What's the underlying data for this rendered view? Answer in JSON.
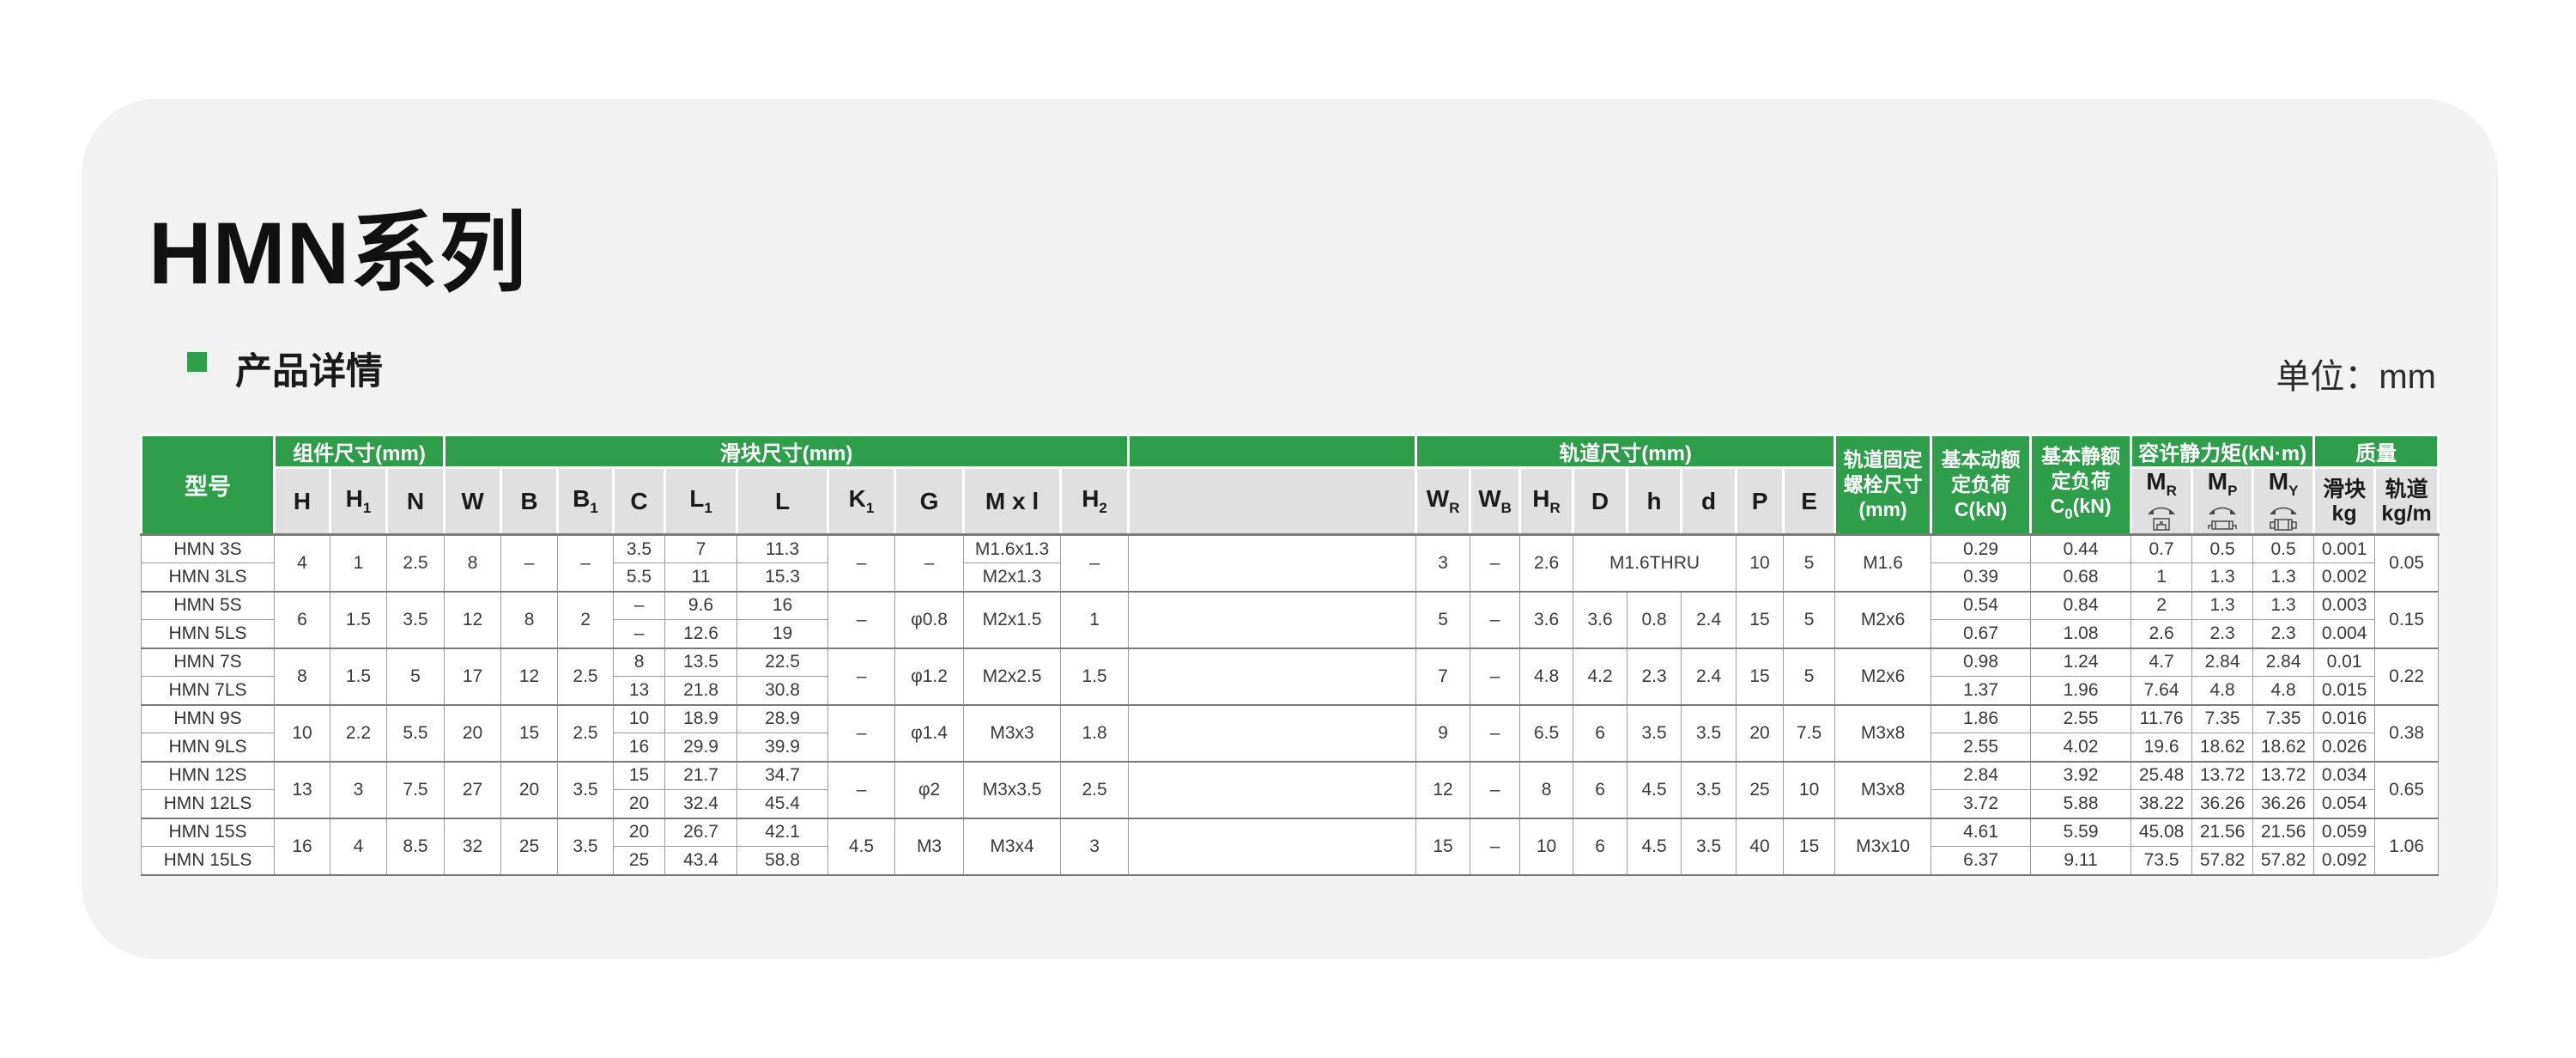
{
  "page": {
    "title": "HMN系列",
    "section_title": "产品详情",
    "unit_label": "单位：mm"
  },
  "colors": {
    "accent_green": "#2E9E4B",
    "header_gray": "#E0E0E0",
    "card_bg": "#F1F2F1",
    "page_bg": "#FFFFFF"
  },
  "table": {
    "top_headers": {
      "model": "型号",
      "assembly": "组件尺寸(mm)",
      "block": "滑块尺寸(mm)",
      "rail": "轨道尺寸(mm)",
      "bolt_lines": [
        "轨道固定",
        "螺栓尺寸",
        "(mm)"
      ],
      "dyn_lines": [
        "基本动额",
        "定负荷",
        "C(kN)"
      ],
      "stat_lines": [
        "基本静额",
        "定负荷"
      ],
      "stat_formula": {
        "pre": "C",
        "sub": "0",
        "post": "(kN)"
      },
      "moment": "容许静力矩(kN·m)",
      "mass": "质量"
    },
    "sub_headers": {
      "assembly": [
        {
          "b": "H"
        },
        {
          "b": "H",
          "s": "1"
        },
        {
          "b": "N"
        }
      ],
      "block": [
        {
          "b": "W"
        },
        {
          "b": "B"
        },
        {
          "b": "B",
          "s": "1"
        },
        {
          "b": "C"
        },
        {
          "b": "L",
          "s": "1"
        },
        {
          "b": "L"
        },
        {
          "b": "K",
          "s": "1"
        },
        {
          "b": "G"
        },
        {
          "b": "M x l"
        },
        {
          "b": "H",
          "s": "2"
        }
      ],
      "rail": [
        {
          "b": "W",
          "s": "R"
        },
        {
          "b": "W",
          "s": "B"
        },
        {
          "b": "H",
          "s": "R"
        },
        {
          "b": "D"
        },
        {
          "b": "h"
        },
        {
          "b": "d"
        },
        {
          "b": "P"
        },
        {
          "b": "E"
        }
      ],
      "moment": [
        {
          "b": "M",
          "s": "R",
          "icon": "mr-icon"
        },
        {
          "b": "M",
          "s": "P",
          "icon": "mp-icon"
        },
        {
          "b": "M",
          "s": "Y",
          "icon": "my-icon"
        }
      ],
      "mass": [
        {
          "lines": [
            "滑块",
            "kg"
          ]
        },
        {
          "lines": [
            "轨道",
            "kg/m"
          ]
        }
      ]
    },
    "groups": [
      {
        "rows": [
          [
            {
              "t": "HMN 3S",
              "n": "model-cell"
            },
            {
              "t": "4",
              "rs": 2
            },
            {
              "t": "1",
              "rs": 2
            },
            {
              "t": "2.5",
              "rs": 2
            },
            {
              "t": "8",
              "rs": 2
            },
            {
              "t": "–",
              "rs": 2
            },
            {
              "t": "–",
              "rs": 2
            },
            {
              "t": "3.5"
            },
            {
              "t": "7"
            },
            {
              "t": "11.3"
            },
            {
              "t": "–",
              "rs": 2
            },
            {
              "t": "–",
              "rs": 2
            },
            {
              "t": "M1.6x1.3"
            },
            {
              "t": "–",
              "rs": 2
            },
            {
              "t": "",
              "rs": 2,
              "n": "spacer-cell"
            },
            {
              "t": "3",
              "rs": 2
            },
            {
              "t": "–",
              "rs": 2
            },
            {
              "t": "2.6",
              "rs": 2
            },
            {
              "t": "M1.6THRU",
              "rs": 2,
              "cs": 3
            },
            {
              "t": "10",
              "rs": 2
            },
            {
              "t": "5",
              "rs": 2
            },
            {
              "t": "M1.6",
              "rs": 2
            },
            {
              "t": "0.29"
            },
            {
              "t": "0.44"
            },
            {
              "t": "0.7"
            },
            {
              "t": "0.5"
            },
            {
              "t": "0.5"
            },
            {
              "t": "0.001"
            },
            {
              "t": "0.05",
              "rs": 2
            }
          ],
          [
            {
              "t": "HMN 3LS",
              "n": "model-cell"
            },
            {
              "t": "5.5"
            },
            {
              "t": "11"
            },
            {
              "t": "15.3"
            },
            {
              "t": "M2x1.3"
            },
            {
              "t": "0.39"
            },
            {
              "t": "0.68"
            },
            {
              "t": "1"
            },
            {
              "t": "1.3"
            },
            {
              "t": "1.3"
            },
            {
              "t": "0.002"
            }
          ]
        ]
      },
      {
        "rows": [
          [
            {
              "t": "HMN 5S",
              "n": "model-cell"
            },
            {
              "t": "6",
              "rs": 2
            },
            {
              "t": "1.5",
              "rs": 2
            },
            {
              "t": "3.5",
              "rs": 2
            },
            {
              "t": "12",
              "rs": 2
            },
            {
              "t": "8",
              "rs": 2
            },
            {
              "t": "2",
              "rs": 2
            },
            {
              "t": "–"
            },
            {
              "t": "9.6"
            },
            {
              "t": "16"
            },
            {
              "t": "–",
              "rs": 2
            },
            {
              "t": "φ0.8",
              "rs": 2
            },
            {
              "t": "M2x1.5",
              "rs": 2
            },
            {
              "t": "1",
              "rs": 2
            },
            {
              "t": "",
              "rs": 2,
              "n": "spacer-cell"
            },
            {
              "t": "5",
              "rs": 2
            },
            {
              "t": "–",
              "rs": 2
            },
            {
              "t": "3.6",
              "rs": 2
            },
            {
              "t": "3.6",
              "rs": 2
            },
            {
              "t": "0.8",
              "rs": 2
            },
            {
              "t": "2.4",
              "rs": 2
            },
            {
              "t": "15",
              "rs": 2
            },
            {
              "t": "5",
              "rs": 2
            },
            {
              "t": "M2x6",
              "rs": 2
            },
            {
              "t": "0.54"
            },
            {
              "t": "0.84"
            },
            {
              "t": "2"
            },
            {
              "t": "1.3"
            },
            {
              "t": "1.3"
            },
            {
              "t": "0.003"
            },
            {
              "t": "0.15",
              "rs": 2
            }
          ],
          [
            {
              "t": "HMN 5LS",
              "n": "model-cell"
            },
            {
              "t": "–"
            },
            {
              "t": "12.6"
            },
            {
              "t": "19"
            },
            {
              "t": "0.67"
            },
            {
              "t": "1.08"
            },
            {
              "t": "2.6"
            },
            {
              "t": "2.3"
            },
            {
              "t": "2.3"
            },
            {
              "t": "0.004"
            }
          ]
        ]
      },
      {
        "rows": [
          [
            {
              "t": "HMN 7S",
              "n": "model-cell"
            },
            {
              "t": "8",
              "rs": 2
            },
            {
              "t": "1.5",
              "rs": 2
            },
            {
              "t": "5",
              "rs": 2
            },
            {
              "t": "17",
              "rs": 2
            },
            {
              "t": "12",
              "rs": 2
            },
            {
              "t": "2.5",
              "rs": 2
            },
            {
              "t": "8"
            },
            {
              "t": "13.5"
            },
            {
              "t": "22.5"
            },
            {
              "t": "–",
              "rs": 2
            },
            {
              "t": "φ1.2",
              "rs": 2
            },
            {
              "t": "M2x2.5",
              "rs": 2
            },
            {
              "t": "1.5",
              "rs": 2
            },
            {
              "t": "",
              "rs": 2,
              "n": "spacer-cell"
            },
            {
              "t": "7",
              "rs": 2
            },
            {
              "t": "–",
              "rs": 2
            },
            {
              "t": "4.8",
              "rs": 2
            },
            {
              "t": "4.2",
              "rs": 2
            },
            {
              "t": "2.3",
              "rs": 2
            },
            {
              "t": "2.4",
              "rs": 2
            },
            {
              "t": "15",
              "rs": 2
            },
            {
              "t": "5",
              "rs": 2
            },
            {
              "t": "M2x6",
              "rs": 2
            },
            {
              "t": "0.98"
            },
            {
              "t": "1.24"
            },
            {
              "t": "4.7"
            },
            {
              "t": "2.84"
            },
            {
              "t": "2.84"
            },
            {
              "t": "0.01"
            },
            {
              "t": "0.22",
              "rs": 2
            }
          ],
          [
            {
              "t": "HMN 7LS",
              "n": "model-cell"
            },
            {
              "t": "13"
            },
            {
              "t": "21.8"
            },
            {
              "t": "30.8"
            },
            {
              "t": "1.37"
            },
            {
              "t": "1.96"
            },
            {
              "t": "7.64"
            },
            {
              "t": "4.8"
            },
            {
              "t": "4.8"
            },
            {
              "t": "0.015"
            }
          ]
        ]
      },
      {
        "rows": [
          [
            {
              "t": "HMN 9S",
              "n": "model-cell"
            },
            {
              "t": "10",
              "rs": 2
            },
            {
              "t": "2.2",
              "rs": 2
            },
            {
              "t": "5.5",
              "rs": 2
            },
            {
              "t": "20",
              "rs": 2
            },
            {
              "t": "15",
              "rs": 2
            },
            {
              "t": "2.5",
              "rs": 2
            },
            {
              "t": "10"
            },
            {
              "t": "18.9"
            },
            {
              "t": "28.9"
            },
            {
              "t": "–",
              "rs": 2
            },
            {
              "t": "φ1.4",
              "rs": 2
            },
            {
              "t": "M3x3",
              "rs": 2
            },
            {
              "t": "1.8",
              "rs": 2
            },
            {
              "t": "",
              "rs": 2,
              "n": "spacer-cell"
            },
            {
              "t": "9",
              "rs": 2
            },
            {
              "t": "–",
              "rs": 2
            },
            {
              "t": "6.5",
              "rs": 2
            },
            {
              "t": "6",
              "rs": 2
            },
            {
              "t": "3.5",
              "rs": 2
            },
            {
              "t": "3.5",
              "rs": 2
            },
            {
              "t": "20",
              "rs": 2
            },
            {
              "t": "7.5",
              "rs": 2
            },
            {
              "t": "M3x8",
              "rs": 2
            },
            {
              "t": "1.86"
            },
            {
              "t": "2.55"
            },
            {
              "t": "11.76"
            },
            {
              "t": "7.35"
            },
            {
              "t": "7.35"
            },
            {
              "t": "0.016"
            },
            {
              "t": "0.38",
              "rs": 2
            }
          ],
          [
            {
              "t": "HMN 9LS",
              "n": "model-cell"
            },
            {
              "t": "16"
            },
            {
              "t": "29.9"
            },
            {
              "t": "39.9"
            },
            {
              "t": "2.55"
            },
            {
              "t": "4.02"
            },
            {
              "t": "19.6"
            },
            {
              "t": "18.62"
            },
            {
              "t": "18.62"
            },
            {
              "t": "0.026"
            }
          ]
        ]
      },
      {
        "rows": [
          [
            {
              "t": "HMN 12S",
              "n": "model-cell"
            },
            {
              "t": "13",
              "rs": 2
            },
            {
              "t": "3",
              "rs": 2
            },
            {
              "t": "7.5",
              "rs": 2
            },
            {
              "t": "27",
              "rs": 2
            },
            {
              "t": "20",
              "rs": 2
            },
            {
              "t": "3.5",
              "rs": 2
            },
            {
              "t": "15"
            },
            {
              "t": "21.7"
            },
            {
              "t": "34.7"
            },
            {
              "t": "–",
              "rs": 2
            },
            {
              "t": "φ2",
              "rs": 2
            },
            {
              "t": "M3x3.5",
              "rs": 2
            },
            {
              "t": "2.5",
              "rs": 2
            },
            {
              "t": "",
              "rs": 2,
              "n": "spacer-cell"
            },
            {
              "t": "12",
              "rs": 2
            },
            {
              "t": "–",
              "rs": 2
            },
            {
              "t": "8",
              "rs": 2
            },
            {
              "t": "6",
              "rs": 2
            },
            {
              "t": "4.5",
              "rs": 2
            },
            {
              "t": "3.5",
              "rs": 2
            },
            {
              "t": "25",
              "rs": 2
            },
            {
              "t": "10",
              "rs": 2
            },
            {
              "t": "M3x8",
              "rs": 2
            },
            {
              "t": "2.84"
            },
            {
              "t": "3.92"
            },
            {
              "t": "25.48"
            },
            {
              "t": "13.72"
            },
            {
              "t": "13.72"
            },
            {
              "t": "0.034"
            },
            {
              "t": "0.65",
              "rs": 2
            }
          ],
          [
            {
              "t": "HMN 12LS",
              "n": "model-cell"
            },
            {
              "t": "20"
            },
            {
              "t": "32.4"
            },
            {
              "t": "45.4"
            },
            {
              "t": "3.72"
            },
            {
              "t": "5.88"
            },
            {
              "t": "38.22"
            },
            {
              "t": "36.26"
            },
            {
              "t": "36.26"
            },
            {
              "t": "0.054"
            }
          ]
        ]
      },
      {
        "rows": [
          [
            {
              "t": "HMN 15S",
              "n": "model-cell"
            },
            {
              "t": "16",
              "rs": 2
            },
            {
              "t": "4",
              "rs": 2
            },
            {
              "t": "8.5",
              "rs": 2
            },
            {
              "t": "32",
              "rs": 2
            },
            {
              "t": "25",
              "rs": 2
            },
            {
              "t": "3.5",
              "rs": 2
            },
            {
              "t": "20"
            },
            {
              "t": "26.7"
            },
            {
              "t": "42.1"
            },
            {
              "t": "4.5",
              "rs": 2
            },
            {
              "t": "M3",
              "rs": 2
            },
            {
              "t": "M3x4",
              "rs": 2
            },
            {
              "t": "3",
              "rs": 2
            },
            {
              "t": "",
              "rs": 2,
              "n": "spacer-cell"
            },
            {
              "t": "15",
              "rs": 2
            },
            {
              "t": "–",
              "rs": 2
            },
            {
              "t": "10",
              "rs": 2
            },
            {
              "t": "6",
              "rs": 2
            },
            {
              "t": "4.5",
              "rs": 2
            },
            {
              "t": "3.5",
              "rs": 2
            },
            {
              "t": "40",
              "rs": 2
            },
            {
              "t": "15",
              "rs": 2
            },
            {
              "t": "M3x10",
              "rs": 2
            },
            {
              "t": "4.61"
            },
            {
              "t": "5.59"
            },
            {
              "t": "45.08"
            },
            {
              "t": "21.56"
            },
            {
              "t": "21.56"
            },
            {
              "t": "0.059"
            },
            {
              "t": "1.06",
              "rs": 2
            }
          ],
          [
            {
              "t": "HMN 15LS",
              "n": "model-cell"
            },
            {
              "t": "25"
            },
            {
              "t": "43.4"
            },
            {
              "t": "58.8"
            },
            {
              "t": "6.37"
            },
            {
              "t": "9.11"
            },
            {
              "t": "73.5"
            },
            {
              "t": "57.82"
            },
            {
              "t": "57.82"
            },
            {
              "t": "0.092"
            }
          ]
        ]
      }
    ]
  }
}
